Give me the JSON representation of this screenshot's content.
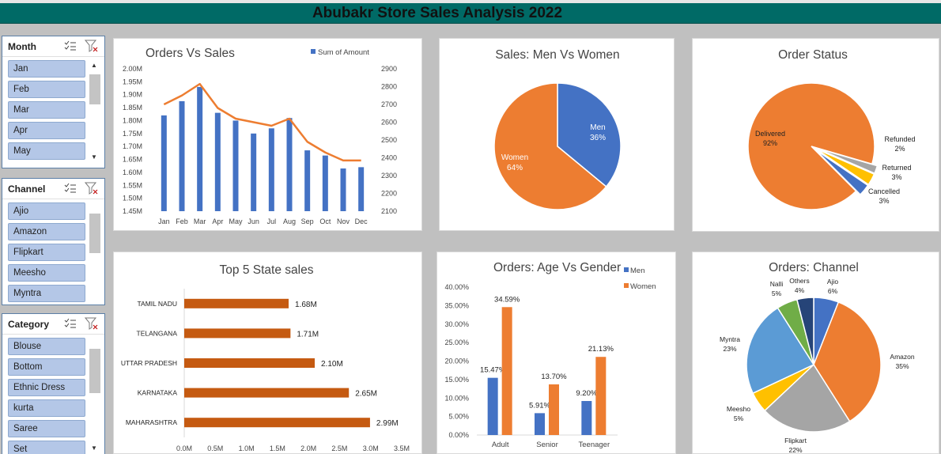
{
  "title": "Abubakr Store Sales Analysis 2022",
  "slicers": [
    {
      "label": "Month",
      "items": [
        "Jan",
        "Feb",
        "Mar",
        "Apr",
        "May"
      ]
    },
    {
      "label": "Channel",
      "items": [
        "Ajio",
        "Amazon",
        "Flipkart",
        "Meesho",
        "Myntra"
      ]
    },
    {
      "label": "Category",
      "items": [
        "Blouse",
        "Bottom",
        "Ethnic Dress",
        "kurta",
        "Saree",
        "Set"
      ]
    }
  ],
  "icons": {
    "multi_select": "multi-select-icon",
    "clear_filter": "clear-filter-icon",
    "scroll_up": "scroll-up-arrow-icon",
    "scroll_down": "scroll-down-arrow-icon"
  },
  "colors": {
    "header": "#006a66",
    "blue": "#4472c4",
    "orange": "#ed7d31",
    "gray": "#a5a5a5",
    "gold": "#ffc000",
    "lightblue": "#5b9bd5",
    "green": "#70ad47",
    "navy": "#264478",
    "bar": "#c55a11",
    "slicer_item": "#b4c7e7"
  },
  "chart_data": [
    {
      "id": "orders_vs_sales",
      "type": "bar",
      "title": "Orders Vs Sales",
      "categories": [
        "Jan",
        "Feb",
        "Mar",
        "Apr",
        "May",
        "Jun",
        "Jul",
        "Aug",
        "Sep",
        "Oct",
        "Nov",
        "Dec"
      ],
      "series": [
        {
          "name": "Sum of Amount",
          "type": "bar",
          "axis": "left",
          "values": [
            1.82,
            1.875,
            1.93,
            1.83,
            1.8,
            1.75,
            1.77,
            1.81,
            1.685,
            1.665,
            1.615,
            1.62
          ]
        },
        {
          "type": "line",
          "axis": "right",
          "values": [
            2700,
            2750,
            2815,
            2680,
            2620,
            2600,
            2580,
            2620,
            2490,
            2430,
            2385,
            2385
          ]
        }
      ],
      "ylim": [
        1.45,
        2.0
      ],
      "yticks": [
        "1.45M",
        "1.50M",
        "1.55M",
        "1.60M",
        "1.65M",
        "1.70M",
        "1.75M",
        "1.80M",
        "1.85M",
        "1.90M",
        "1.95M",
        "2.00M"
      ],
      "y2lim": [
        2100,
        2900
      ],
      "y2ticks": [
        "2100",
        "2200",
        "2300",
        "2400",
        "2500",
        "2600",
        "2700",
        "2800",
        "2900"
      ],
      "legend": "top"
    },
    {
      "id": "sales_gender",
      "type": "pie",
      "title": "Sales: Men Vs Women",
      "labels": [
        "Men",
        "Women"
      ],
      "values": [
        36,
        64
      ],
      "value_labels": [
        "36%",
        "64%"
      ]
    },
    {
      "id": "order_status",
      "type": "pie",
      "title": "Order Status",
      "labels": [
        "Delivered",
        "Refunded",
        "Returned",
        "Cancelled"
      ],
      "values": [
        92,
        2,
        3,
        3
      ],
      "value_labels": [
        "92%",
        "2%",
        "3%",
        "3%"
      ]
    },
    {
      "id": "top_states",
      "type": "bar",
      "orientation": "horizontal",
      "title": "Top 5 State sales",
      "categories": [
        "TAMIL NADU",
        "TELANGANA",
        "UTTAR PRADESH",
        "KARNATAKA",
        "MAHARASHTRA"
      ],
      "values": [
        1.68,
        1.71,
        2.1,
        2.65,
        2.99
      ],
      "value_labels": [
        "1.68M",
        "1.71M",
        "2.10M",
        "2.65M",
        "2.99M"
      ],
      "xlim": [
        0,
        3.5
      ],
      "xticks": [
        "0.0M",
        "0.5M",
        "1.0M",
        "1.5M",
        "2.0M",
        "2.5M",
        "3.0M",
        "3.5M"
      ]
    },
    {
      "id": "age_gender",
      "type": "bar",
      "title": "Orders: Age  Vs Gender",
      "categories": [
        "Adult",
        "Senior",
        "Teenager"
      ],
      "series": [
        {
          "name": "Men",
          "values": [
            15.47,
            5.91,
            9.2
          ],
          "labels": [
            "15.47%",
            "5.91%",
            "9.20%"
          ]
        },
        {
          "name": "Women",
          "values": [
            34.59,
            13.7,
            21.13
          ],
          "labels": [
            "34.59%",
            "13.70%",
            "21.13%"
          ]
        }
      ],
      "ylim": [
        0,
        40
      ],
      "yticks": [
        "0.00%",
        "5.00%",
        "10.00%",
        "15.00%",
        "20.00%",
        "25.00%",
        "30.00%",
        "35.00%",
        "40.00%"
      ],
      "legend": "top-right"
    },
    {
      "id": "orders_channel",
      "type": "pie",
      "title": "Orders: Channel",
      "labels": [
        "Ajio",
        "Amazon",
        "Flipkart",
        "Meesho",
        "Myntra",
        "Nalli",
        "Others"
      ],
      "values": [
        6,
        35,
        22,
        5,
        23,
        5,
        4
      ],
      "value_labels": [
        "6%",
        "35%",
        "22%",
        "5%",
        "23%",
        "5%",
        "4%"
      ]
    }
  ]
}
